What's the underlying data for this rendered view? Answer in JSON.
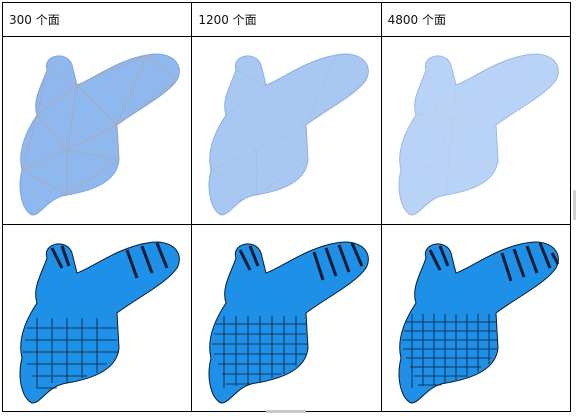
{
  "table": {
    "headers": [
      "300 个面",
      "1200 个面",
      "4800 个面"
    ],
    "rows": [
      {
        "style": "wireframe-mesh",
        "cells": [
          "300",
          "1200",
          "4800"
        ]
      },
      {
        "style": "striped-texture",
        "cells": [
          "300",
          "1200",
          "4800"
        ]
      }
    ]
  },
  "colors": {
    "mesh_fill": "#8fb8ef",
    "mesh_light": "#b9d3f6",
    "mesh_edge": "#c89a88",
    "texture_fill": "#1e90e8",
    "texture_line": "#0b1a2e"
  }
}
